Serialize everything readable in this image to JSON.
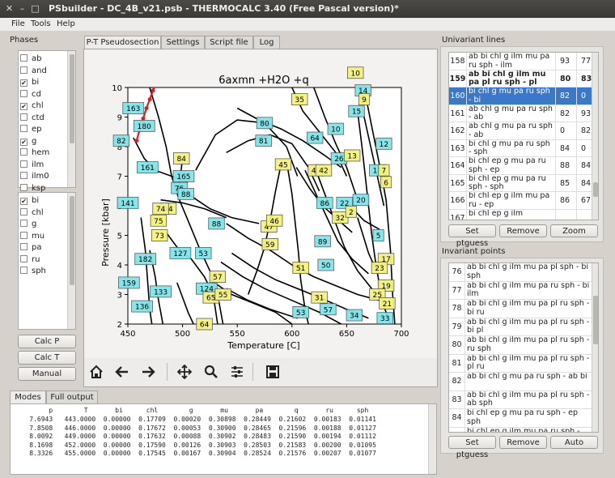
{
  "window": {
    "title": "PSbuilder - DC_4B_v21.psb - THERMOCALC 3.40 (Free Pascal version)*"
  },
  "menu": [
    "File",
    "Tools",
    "Help"
  ],
  "phases": {
    "label": "Phases",
    "list1": [
      {
        "name": "ab",
        "checked": false
      },
      {
        "name": "and",
        "checked": false
      },
      {
        "name": "bi",
        "checked": true
      },
      {
        "name": "cd",
        "checked": false
      },
      {
        "name": "chl",
        "checked": true
      },
      {
        "name": "ctd",
        "checked": false
      },
      {
        "name": "ep",
        "checked": false
      },
      {
        "name": "g",
        "checked": true
      },
      {
        "name": "hem",
        "checked": false
      },
      {
        "name": "ilm",
        "checked": false
      },
      {
        "name": "ilm0",
        "checked": false
      },
      {
        "name": "ksp",
        "checked": false
      }
    ],
    "list2": [
      {
        "name": "bi",
        "checked": true
      },
      {
        "name": "chl",
        "checked": false
      },
      {
        "name": "g",
        "checked": false
      },
      {
        "name": "mu",
        "checked": false
      },
      {
        "name": "pa",
        "checked": false
      },
      {
        "name": "ru",
        "checked": false
      },
      {
        "name": "sph",
        "checked": false
      }
    ],
    "buttons": [
      "Calc P",
      "Calc T",
      "Manual"
    ]
  },
  "tabs": [
    "P-T Pseudosection",
    "Settings",
    "Script file",
    "Log"
  ],
  "bottom_tabs": [
    "Modes",
    "Full output"
  ],
  "chart_data": {
    "type": "scatter",
    "title": "6axmn +H2O +q",
    "xlabel": "Temperature [C]",
    "ylabel": "Pressure [kbar]",
    "xlim": [
      450,
      700
    ],
    "ylim": [
      2,
      10
    ],
    "xticks": [
      450,
      500,
      550,
      600,
      650,
      700
    ],
    "yticks": [
      2,
      3,
      4,
      5,
      6,
      7,
      8,
      9,
      10
    ],
    "cyan_labels": [
      {
        "t": "163",
        "x": 455,
        "y": 9.3
      },
      {
        "t": "180",
        "x": 465,
        "y": 8.7
      },
      {
        "t": "82",
        "x": 444,
        "y": 8.2
      },
      {
        "t": "161",
        "x": 468,
        "y": 7.3
      },
      {
        "t": "141",
        "x": 450,
        "y": 6.1
      },
      {
        "t": "165",
        "x": 501,
        "y": 7.0
      },
      {
        "t": "76",
        "x": 497,
        "y": 6.6
      },
      {
        "t": "88",
        "x": 503,
        "y": 6.4
      },
      {
        "t": "88",
        "x": 531,
        "y": 5.4
      },
      {
        "t": "80",
        "x": 575,
        "y": 8.8
      },
      {
        "t": "81",
        "x": 574,
        "y": 8.2
      },
      {
        "t": "64",
        "x": 621,
        "y": 8.3
      },
      {
        "t": "10",
        "x": 640,
        "y": 8.6
      },
      {
        "t": "15",
        "x": 659,
        "y": 9.2
      },
      {
        "t": "14",
        "x": 665,
        "y": 9.9
      },
      {
        "t": "26",
        "x": 643,
        "y": 7.6
      },
      {
        "t": "12",
        "x": 684,
        "y": 8.1
      },
      {
        "t": "11",
        "x": 678,
        "y": 7.2
      },
      {
        "t": "20",
        "x": 663,
        "y": 6.2
      },
      {
        "t": "22",
        "x": 648,
        "y": 6.1
      },
      {
        "t": "86",
        "x": 630,
        "y": 6.1
      },
      {
        "t": "5",
        "x": 679,
        "y": 5.0
      },
      {
        "t": "89",
        "x": 628,
        "y": 4.8
      },
      {
        "t": "50",
        "x": 631,
        "y": 4.0
      },
      {
        "t": "182",
        "x": 466,
        "y": 4.2
      },
      {
        "t": "159",
        "x": 451,
        "y": 3.4
      },
      {
        "t": "136",
        "x": 463,
        "y": 2.6
      },
      {
        "t": "133",
        "x": 480,
        "y": 3.1
      },
      {
        "t": "127",
        "x": 498,
        "y": 4.4
      },
      {
        "t": "53",
        "x": 519,
        "y": 4.4
      },
      {
        "t": "124",
        "x": 522,
        "y": 3.2
      },
      {
        "t": "53",
        "x": 608,
        "y": 2.4
      },
      {
        "t": "57",
        "x": 633,
        "y": 2.5
      },
      {
        "t": "33",
        "x": 685,
        "y": 2.2
      },
      {
        "t": "34",
        "x": 657,
        "y": 2.3
      }
    ],
    "yellow_labels": [
      {
        "t": "10",
        "x": 658,
        "y": 10.5
      },
      {
        "t": "35",
        "x": 607,
        "y": 9.6
      },
      {
        "t": "9",
        "x": 666,
        "y": 9.6
      },
      {
        "t": "84",
        "x": 499,
        "y": 7.6
      },
      {
        "t": "45",
        "x": 592,
        "y": 7.4
      },
      {
        "t": "43",
        "x": 622,
        "y": 7.2
      },
      {
        "t": "42",
        "x": 629,
        "y": 7.2
      },
      {
        "t": "13",
        "x": 655,
        "y": 7.7
      },
      {
        "t": "7",
        "x": 684,
        "y": 7.2
      },
      {
        "t": "6",
        "x": 686,
        "y": 6.8
      },
      {
        "t": "94",
        "x": 487,
        "y": 5.9
      },
      {
        "t": "74",
        "x": 480,
        "y": 5.9
      },
      {
        "t": "75",
        "x": 478,
        "y": 5.5
      },
      {
        "t": "73",
        "x": 479,
        "y": 5.0
      },
      {
        "t": "47",
        "x": 579,
        "y": 5.3
      },
      {
        "t": "46",
        "x": 584,
        "y": 5.5
      },
      {
        "t": "32",
        "x": 644,
        "y": 5.6
      },
      {
        "t": "2",
        "x": 654,
        "y": 5.8
      },
      {
        "t": "59",
        "x": 580,
        "y": 4.7
      },
      {
        "t": "51",
        "x": 608,
        "y": 3.9
      },
      {
        "t": "17",
        "x": 686,
        "y": 4.2
      },
      {
        "t": "23",
        "x": 680,
        "y": 3.9
      },
      {
        "t": "19",
        "x": 686,
        "y": 3.3
      },
      {
        "t": "25",
        "x": 678,
        "y": 3.0
      },
      {
        "t": "21",
        "x": 687,
        "y": 2.7
      },
      {
        "t": "31",
        "x": 625,
        "y": 2.9
      },
      {
        "t": "65",
        "x": 526,
        "y": 2.9
      },
      {
        "t": "64",
        "x": 520,
        "y": 2.0
      },
      {
        "t": "57",
        "x": 532,
        "y": 3.6
      },
      {
        "t": "55",
        "x": 537,
        "y": 3.0
      }
    ]
  },
  "univariant": {
    "label": "Univariant lines",
    "rows": [
      {
        "id": "158",
        "phases": "ab bi chl g ilm mu pa ru sph - ilm",
        "a": "93",
        "b": "77",
        "bold": false,
        "selected": false
      },
      {
        "id": "159",
        "phases": "ab bi chl g ilm mu pa pl ru sph - pl",
        "a": "80",
        "b": "83",
        "bold": true,
        "selected": false
      },
      {
        "id": "160",
        "phases": "bi chl g mu pa ru sph - bi",
        "a": "82",
        "b": "0",
        "bold": false,
        "selected": true
      },
      {
        "id": "161",
        "phases": "ab chl g mu pa ru sph - ab",
        "a": "82",
        "b": "93",
        "bold": false,
        "selected": false
      },
      {
        "id": "162",
        "phases": "ab chl g mu pa ru sph - ab",
        "a": "0",
        "b": "82",
        "bold": false,
        "selected": false
      },
      {
        "id": "163",
        "phases": "bi chl g mu pa ru sph - sph",
        "a": "84",
        "b": "0",
        "bold": false,
        "selected": false
      },
      {
        "id": "164",
        "phases": "bi chl ep g mu pa ru sph - ep",
        "a": "88",
        "b": "84",
        "bold": false,
        "selected": false
      },
      {
        "id": "165",
        "phases": "bi chl ep g mu pa ru sph - sph",
        "a": "85",
        "b": "84",
        "bold": false,
        "selected": false
      },
      {
        "id": "166",
        "phases": "bi chl ep g ilm mu pa ru - ep",
        "a": "86",
        "b": "67",
        "bold": false,
        "selected": false
      },
      {
        "id": "167",
        "phases": "bi chl ep g ilm",
        "a": "",
        "b": "",
        "bold": false,
        "selected": false
      }
    ],
    "buttons": [
      "Set ptguess",
      "Remove",
      "Zoom"
    ]
  },
  "invariant": {
    "label": "Invariant points",
    "rows": [
      {
        "id": "76",
        "phases": "ab bi chl g ilm mu pa pl sph - bi sph"
      },
      {
        "id": "77",
        "phases": "ab bi chl g ilm mu pa ru sph - bi ilm"
      },
      {
        "id": "78",
        "phases": "ab bi chl g ilm mu pa pl ru sph - bi ru"
      },
      {
        "id": "79",
        "phases": "ab bi chl g ilm mu pa pl ru sph - bi pl"
      },
      {
        "id": "80",
        "phases": "ab bi chl g ilm mu pa pl ru sph - ru sph"
      },
      {
        "id": "81",
        "phases": "ab bi chl g ilm mu pa pl ru sph - pl ru"
      },
      {
        "id": "82",
        "phases": "ab bi chl g mu pa ru sph - ab bi"
      },
      {
        "id": "83",
        "phases": "ab bi chl g ilm mu pa pl ru sph - ab sph"
      },
      {
        "id": "84",
        "phases": "bi chl ep g mu pa ru sph - ep sph"
      },
      {
        "id": "85",
        "phases": "bi chl ep g ilm mu pa ru sph - ilm"
      }
    ],
    "buttons": [
      "Set ptguess",
      "Remove",
      "Auto"
    ]
  },
  "modes": {
    "header": "         p        T       bi      chl        g       mu       pa        q       ru      sph",
    "rows": [
      "    7.6943   443.0000  0.00000  0.17709  0.00020  0.30898  0.28449  0.21602  0.00183  0.01141",
      "    7.8508   446.0000  0.00000  0.17672  0.00053  0.30900  0.28465  0.21596  0.00188  0.01127",
      "    8.0092   449.0000  0.00000  0.17632  0.00088  0.30902  0.28483  0.21590  0.00194  0.01112",
      "    8.1698   452.0000  0.00000  0.17590  0.00126  0.30903  0.28503  0.21583  0.00200  0.01095",
      "    8.3326   455.0000  0.00000  0.17545  0.00167  0.30904  0.28524  0.21576  0.00207  0.01077"
    ]
  },
  "toolbar_icons": [
    "home-icon",
    "back-icon",
    "forward-icon",
    "pan-icon",
    "zoom-icon",
    "configure-icon",
    "save-icon"
  ]
}
